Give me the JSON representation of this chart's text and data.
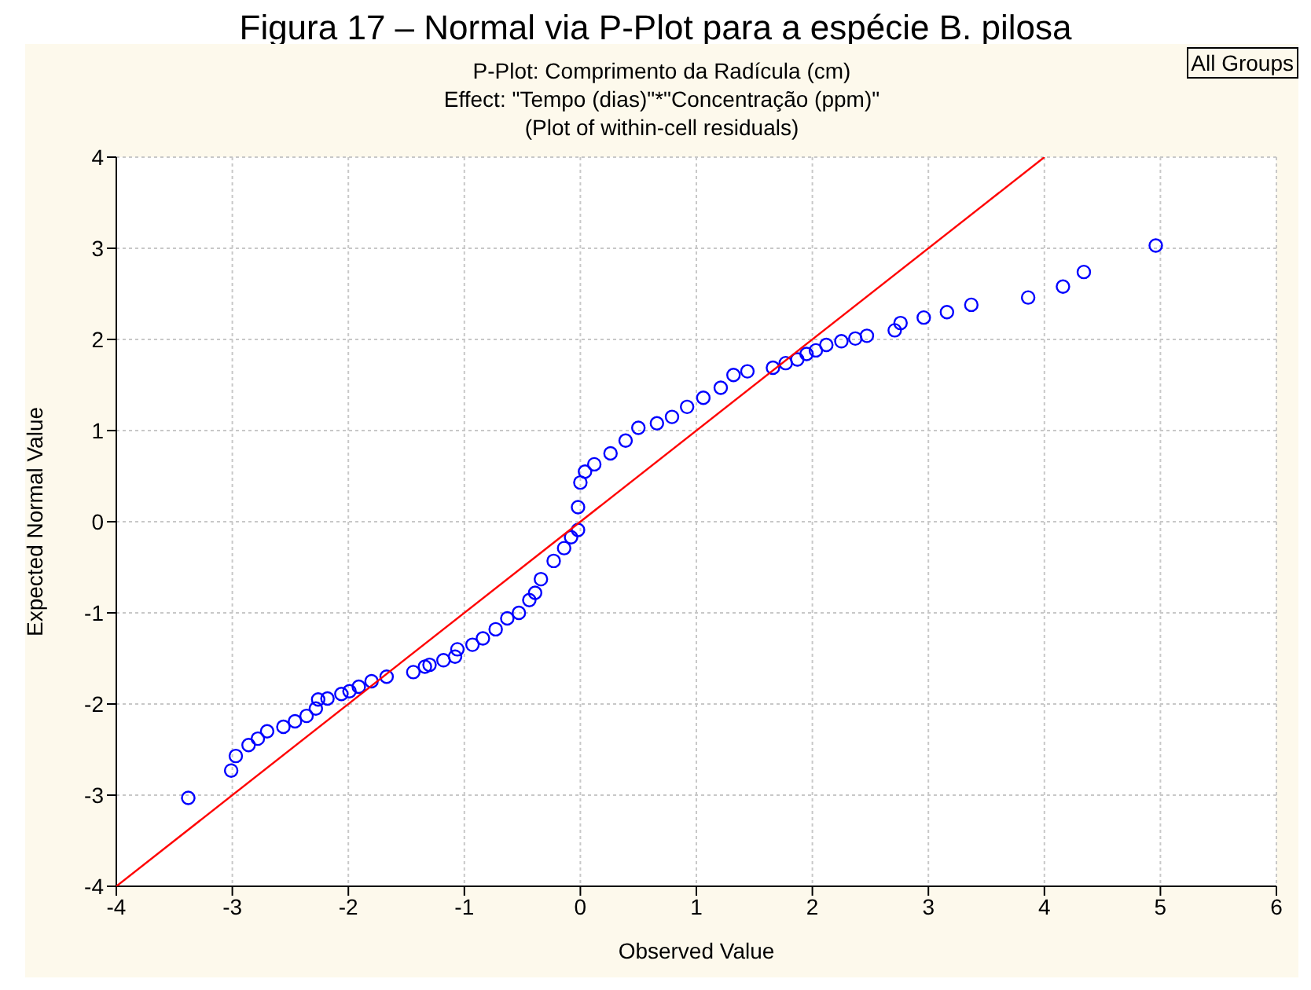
{
  "chart_data": {
    "type": "scatter",
    "title": "P-Plot: Comprimento da Radícula (cm)",
    "subtitle": "Effect: \"Tempo (dias)\"*\"Concentração (ppm)\"\n(Plot of within-cell residuals)",
    "xlabel": "Observed Value",
    "ylabel": "Expected Normal Value",
    "annotations": [
      "Figura 17 – Normal via P-Plot para a espécie B. pilosa",
      "All Groups"
    ],
    "xlim": [
      -4,
      6
    ],
    "xticks": [
      -4,
      -3,
      -2,
      -1,
      0,
      1,
      2,
      3,
      4,
      5,
      6
    ],
    "ylim": [
      -4,
      4
    ],
    "yticks": [
      -4,
      -3,
      -2,
      -1,
      0,
      1,
      2,
      3,
      4
    ],
    "grid": true,
    "marker": "circle",
    "series": [
      {
        "color": "#0000ff",
        "x": [
          -3.38,
          -3.01,
          -2.97,
          -2.86,
          -2.78,
          -2.7,
          -2.56,
          -2.46,
          -2.36,
          -2.28,
          -2.26,
          -2.18,
          -2.06,
          -1.99,
          -1.91,
          -1.8,
          -1.67,
          -1.44,
          -1.34,
          -1.3,
          -1.18,
          -1.08,
          -1.06,
          -0.93,
          -0.84,
          -0.73,
          -0.63,
          -0.53,
          -0.44,
          -0.39,
          -0.34,
          -0.23,
          -0.14,
          -0.08,
          -0.02,
          -0.02,
          0.0,
          0.04,
          0.12,
          0.26,
          0.39,
          0.5,
          0.66,
          0.79,
          0.92,
          1.06,
          1.21,
          1.32,
          1.44,
          1.66,
          1.77,
          1.87,
          1.95,
          2.03,
          2.12,
          2.25,
          2.37,
          2.47,
          2.71,
          2.76,
          2.96,
          3.16,
          3.37,
          3.86,
          4.16,
          4.34,
          4.96
        ],
        "values": [
          -3.03,
          -2.73,
          -2.57,
          -2.45,
          -2.38,
          -2.3,
          -2.25,
          -2.19,
          -2.13,
          -2.05,
          -1.95,
          -1.94,
          -1.89,
          -1.86,
          -1.81,
          -1.75,
          -1.7,
          -1.65,
          -1.59,
          -1.57,
          -1.52,
          -1.48,
          -1.4,
          -1.35,
          -1.28,
          -1.18,
          -1.06,
          -1.0,
          -0.86,
          -0.78,
          -0.63,
          -0.43,
          -0.29,
          -0.17,
          -0.09,
          0.16,
          0.43,
          0.55,
          0.63,
          0.75,
          0.89,
          1.03,
          1.08,
          1.15,
          1.26,
          1.36,
          1.47,
          1.61,
          1.65,
          1.69,
          1.74,
          1.78,
          1.84,
          1.88,
          1.94,
          1.98,
          2.01,
          2.04,
          2.1,
          2.18,
          2.24,
          2.3,
          2.38,
          2.46,
          2.58,
          2.74,
          3.03
        ]
      },
      {
        "type": "line",
        "color": "#ff0000",
        "x": [
          -4,
          4
        ],
        "values": [
          -4,
          4
        ],
        "marker": "none",
        "line_style": "solid"
      }
    ]
  }
}
